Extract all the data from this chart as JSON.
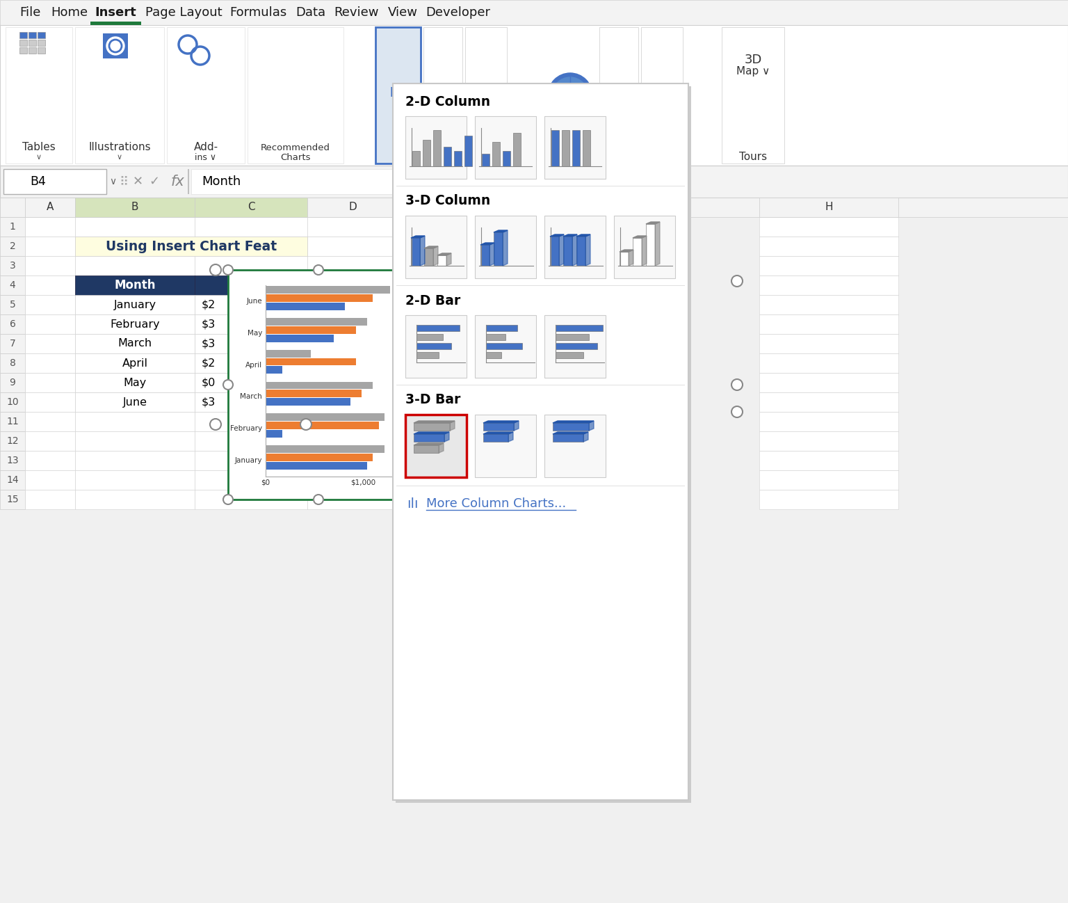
{
  "bg_color": "#f0f0f0",
  "tab_names": [
    "File",
    "Home",
    "Insert",
    "Page Layout",
    "Formulas",
    "Data",
    "Review",
    "View",
    "Developer"
  ],
  "active_tab": "Insert",
  "active_tab_color": "#1f7a3c",
  "formula_bar_text": "Month",
  "cell_ref": "B4",
  "spreadsheet_title": "Using Insert Chart Feat",
  "title_bg": "#fefde0",
  "title_color": "#1f3864",
  "table_header_bg": "#1f3864",
  "table_header_color": "#ffffff",
  "months": [
    "January",
    "February",
    "March",
    "April",
    "May",
    "June"
  ],
  "values": [
    "$2",
    "$3",
    "$3",
    "$2",
    "$0",
    "$3"
  ],
  "bar_months": [
    "June",
    "May",
    "April",
    "March",
    "February",
    "January"
  ],
  "bar_series1": [
    1100,
    900,
    400,
    950,
    1050,
    1050
  ],
  "bar_series2": [
    950,
    800,
    800,
    850,
    1000,
    950
  ],
  "bar_series3": [
    700,
    600,
    150,
    750,
    150,
    900
  ],
  "bar_color1": "#4472c4",
  "bar_color2": "#ed7d31",
  "bar_color3": "#a5a5a5",
  "section_2d_col": "2-D Column",
  "section_3d_col": "3-D Column",
  "section_2d_bar": "2-D Bar",
  "section_3d_bar": "3-D Bar",
  "more_charts": "More Column Charts...",
  "selected_box_color": "#cc0000",
  "chart_icon_blue": "#4472c4",
  "chart_icon_gray": "#a5a5a5"
}
